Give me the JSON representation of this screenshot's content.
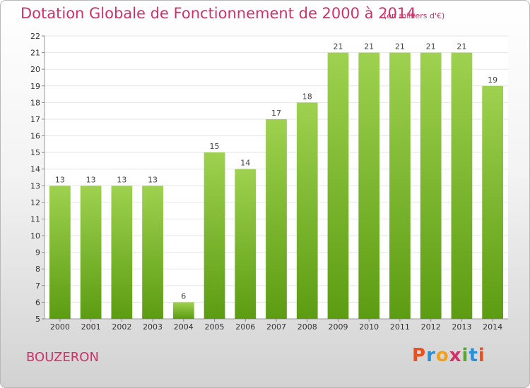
{
  "title": "Dotation Globale de Fonctionnement de 2000 à 2014",
  "unit": "(en milliers d'€)",
  "commune": "BOUZERON",
  "logo": {
    "letters": [
      "P",
      "r",
      "o",
      "x",
      "i",
      "t",
      "i"
    ],
    "colors": [
      "#e8501e",
      "#2a8fd6",
      "#f0a020",
      "#d2306a",
      "#5aa832",
      "#2a8fd6",
      "#e8501e"
    ]
  },
  "colors": {
    "bar_top": "#9ed14f",
    "bar_bottom": "#5c9c12",
    "grid": "#e6e6e6"
  },
  "chart_data": {
    "type": "bar",
    "categories": [
      "2000",
      "2001",
      "2002",
      "2003",
      "2004",
      "2005",
      "2006",
      "2007",
      "2008",
      "2009",
      "2010",
      "2011",
      "2012",
      "2013",
      "2014"
    ],
    "values": [
      13,
      13,
      13,
      13,
      6,
      15,
      14,
      17,
      18,
      21,
      21,
      21,
      21,
      21,
      19
    ],
    "ylim": [
      5,
      22
    ],
    "yticks": [
      5,
      6,
      7,
      8,
      9,
      10,
      11,
      12,
      13,
      14,
      15,
      16,
      17,
      18,
      19,
      20,
      21,
      22
    ],
    "grid": true
  }
}
